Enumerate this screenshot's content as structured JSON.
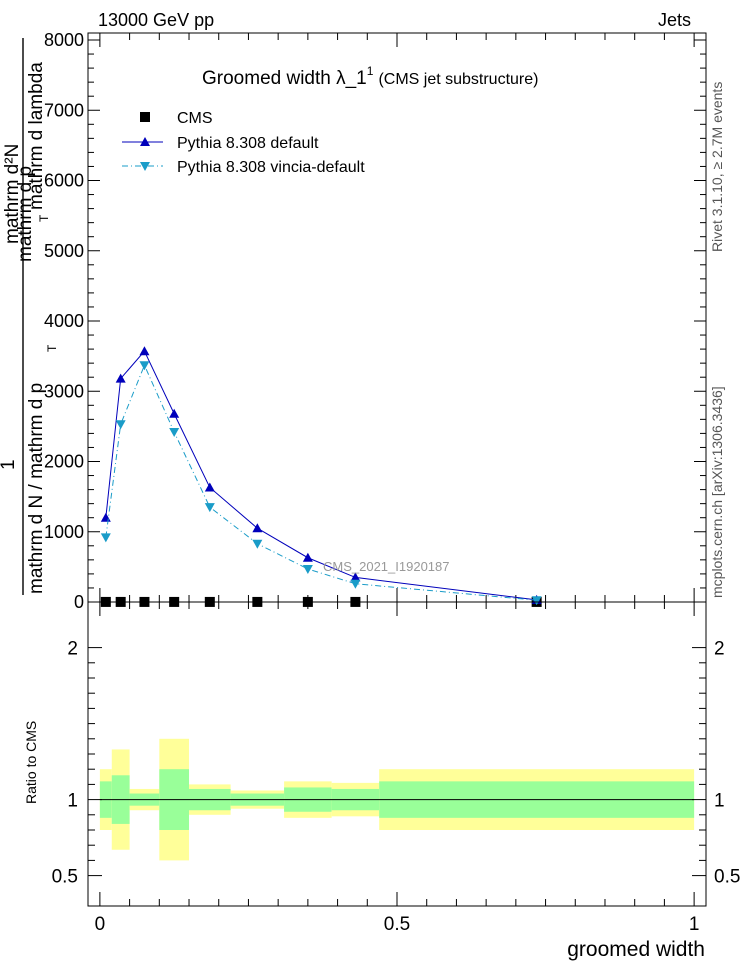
{
  "header": {
    "left": "13000 GeV pp",
    "right": "Jets"
  },
  "side_labels": {
    "rivet": "Rivet 3.1.10, ≥ 2.7M events",
    "mcplots": "mcplots.cern.ch [arXiv:1306.3436]"
  },
  "colors": {
    "pythia_default": "#0000bb",
    "pythia_vincia": "#1a9cc8",
    "cms": "#000000",
    "band_inner": "#99ff99",
    "band_outer": "#ffff99"
  },
  "chart_data": [
    {
      "type": "line",
      "title_main": "Groomed width  λ_1",
      "title_sup": "1",
      "title_suffix": "(CMS jet substructure)",
      "ylabel_top": "mathrm d²N",
      "ylabel_top2": "mathrm d p",
      "ylabel_top3": "mathrm d lambda",
      "ylabel_sub": "T",
      "ylabel_bottom1": "1",
      "ylabel_bottom2": "mathrm d N / mathrm d p",
      "ylabel_bottom_sub": "T",
      "ylim": [
        0,
        8000
      ],
      "xlim": [
        -0.02,
        1.02
      ],
      "yticks": [
        0,
        1000,
        2000,
        3000,
        4000,
        5000,
        6000,
        7000,
        8000
      ],
      "ytick_labels": [
        "0",
        "1000",
        "2000",
        "3000",
        "4000",
        "5000",
        "6000",
        "7000",
        "8000"
      ],
      "watermark": "CMS_2021_I1920187",
      "legend_position": "top-left",
      "x": [
        0.01,
        0.035,
        0.075,
        0.125,
        0.185,
        0.265,
        0.35,
        0.43,
        0.735
      ],
      "bin_edges": [
        0.0,
        0.02,
        0.05,
        0.1,
        0.15,
        0.22,
        0.31,
        0.39,
        0.47,
        1.0
      ],
      "series": [
        {
          "name": "CMS",
          "values": [
            1.0,
            1.0,
            1.0,
            1.0,
            1.0,
            1.0,
            1.0,
            1.0,
            1.0
          ],
          "err": [
            0.1,
            0.15,
            0.03,
            0.18,
            0.05,
            0.03,
            0.05,
            0.05,
            0.08
          ]
        },
        {
          "name": "Pythia 8.308 default",
          "values": [
            1200,
            3180,
            3570,
            2680,
            1630,
            1050,
            630,
            350,
            30
          ]
        },
        {
          "name": "Pythia 8.308 vincia-default",
          "values": [
            920,
            2530,
            3370,
            2420,
            1350,
            830,
            470,
            260,
            25
          ]
        }
      ]
    },
    {
      "type": "line",
      "ylabel": "Ratio to CMS",
      "xlabel": "groomed width",
      "ylim": [
        0.3,
        2.3
      ],
      "yticks": [
        0.5,
        1,
        2
      ],
      "ytick_labels": [
        "0.5",
        "1",
        "2"
      ],
      "xticks": [
        0,
        0.5,
        1
      ],
      "xtick_labels": [
        "0",
        "0.5",
        "1"
      ],
      "band_inner": [
        0.12,
        0.16,
        0.04,
        0.2,
        0.07,
        0.04,
        0.08,
        0.07,
        0.12
      ],
      "band_outer": [
        0.2,
        0.33,
        0.07,
        0.4,
        0.1,
        0.06,
        0.12,
        0.11,
        0.2
      ]
    }
  ]
}
